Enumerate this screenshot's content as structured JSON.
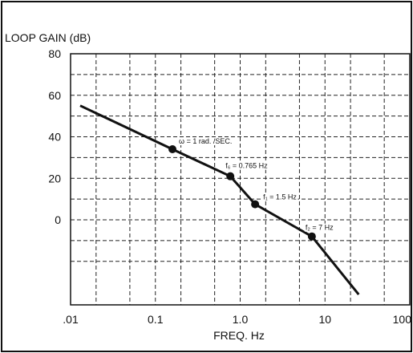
{
  "chart_data": {
    "type": "line",
    "ylabel": "LOOP GAIN (dB)",
    "xlabel": "FREQ. Hz",
    "x_scale": "log",
    "xlim": [
      0.01,
      100
    ],
    "ylim": [
      -20,
      80
    ],
    "x_ticks": [
      {
        "value": 0.01,
        "label": ".01"
      },
      {
        "value": 0.1,
        "label": "0.1"
      },
      {
        "value": 1,
        "label": "1.0"
      },
      {
        "value": 10,
        "label": "10"
      },
      {
        "value": 100,
        "label": "100"
      }
    ],
    "y_ticks": [
      {
        "value": 80,
        "label": "80"
      },
      {
        "value": 60,
        "label": "60"
      },
      {
        "value": 40,
        "label": "40"
      },
      {
        "value": 20,
        "label": "20"
      },
      {
        "value": 0,
        "label": "0"
      }
    ],
    "grid": true,
    "series": [
      {
        "x": [
          0.013,
          0.159,
          0.765,
          1.5,
          7,
          25
        ],
        "y": [
          55,
          34,
          21,
          7.5,
          -8,
          -36
        ]
      }
    ],
    "points": [
      {
        "x": 0.159,
        "y": 34,
        "label": "ω = 1 rad. /SEC."
      },
      {
        "x": 0.765,
        "y": 21,
        "label": "f₆ = 0.765 Hz"
      },
      {
        "x": 1.5,
        "y": 7.5,
        "label": "f₁ = 1.5 Hz"
      },
      {
        "x": 7,
        "y": -8,
        "label": "f₂ = 7 Hz"
      }
    ]
  }
}
